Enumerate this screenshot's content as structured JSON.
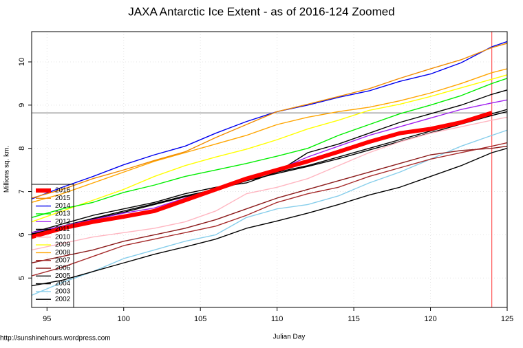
{
  "chart_data": {
    "type": "line",
    "title": "JAXA Antarctic Ice Extent - as of 2016-124 Zoomed",
    "x_label": "Julian Day",
    "y_label": "Millions sq. km.",
    "source": "http://sunshinehours.wordpress.com",
    "xlim": [
      94,
      125
    ],
    "ylim": [
      4.32,
      10.7
    ],
    "xticks": [
      95,
      100,
      105,
      110,
      115,
      120,
      125
    ],
    "yticks": [
      5,
      6,
      7,
      8,
      9,
      10
    ],
    "grid": true,
    "hline": 8.82,
    "vline": 124,
    "legend": "top-left",
    "x": [
      94,
      96,
      98,
      100,
      102,
      104,
      106,
      108,
      110,
      112,
      114,
      116,
      118,
      120,
      122,
      124,
      125
    ],
    "series": [
      {
        "name": "2016",
        "color": "#ff0000",
        "values": [
          5.95,
          6.15,
          6.3,
          6.42,
          6.55,
          6.8,
          7.05,
          7.3,
          7.5,
          7.7,
          7.92,
          8.15,
          8.35,
          8.45,
          8.6,
          8.82,
          null
        ]
      },
      {
        "name": "2015",
        "color": "#f08a00",
        "values": [
          6.85,
          7.05,
          7.3,
          7.5,
          7.72,
          7.92,
          8.25,
          8.55,
          8.85,
          9.02,
          9.2,
          9.38,
          9.62,
          9.84,
          10.05,
          10.33,
          10.43
        ]
      },
      {
        "name": "2014",
        "color": "#0000ee",
        "values": [
          6.83,
          7.1,
          7.35,
          7.62,
          7.85,
          8.05,
          8.35,
          8.62,
          8.85,
          9.0,
          9.18,
          9.33,
          9.55,
          9.72,
          9.98,
          10.35,
          10.47
        ]
      },
      {
        "name": "2013",
        "color": "#00ee00",
        "values": [
          6.4,
          6.6,
          6.75,
          6.98,
          7.15,
          7.35,
          7.5,
          7.65,
          7.82,
          8.0,
          8.3,
          8.55,
          8.8,
          9.0,
          9.22,
          9.5,
          9.62
        ]
      },
      {
        "name": "2012",
        "color": "#a020f0",
        "values": [
          6.05,
          6.2,
          6.35,
          6.5,
          6.62,
          6.85,
          7.05,
          7.3,
          7.5,
          7.8,
          8.05,
          8.3,
          8.5,
          8.7,
          8.9,
          9.05,
          9.12
        ]
      },
      {
        "name": "2011",
        "color": "#000000",
        "values": [
          6.05,
          6.25,
          6.45,
          6.6,
          6.75,
          6.95,
          7.1,
          7.2,
          7.45,
          7.9,
          8.1,
          8.35,
          8.6,
          8.8,
          9.0,
          9.25,
          9.35
        ]
      },
      {
        "name": "2010",
        "color": "#ffb6c1",
        "values": [
          5.65,
          5.8,
          5.95,
          6.05,
          6.15,
          6.3,
          6.55,
          6.95,
          7.1,
          7.3,
          7.6,
          7.9,
          8.15,
          8.35,
          8.5,
          8.65,
          8.72
        ]
      },
      {
        "name": "2009",
        "color": "#ffff00",
        "values": [
          6.3,
          6.55,
          6.8,
          7.05,
          7.35,
          7.6,
          7.8,
          7.98,
          8.2,
          8.45,
          8.65,
          8.88,
          9.02,
          9.2,
          9.4,
          9.6,
          9.7
        ]
      },
      {
        "name": "2008",
        "color": "#ffa500",
        "values": [
          6.75,
          6.95,
          7.2,
          7.45,
          7.7,
          7.9,
          8.1,
          8.3,
          8.55,
          8.72,
          8.85,
          8.95,
          9.1,
          9.28,
          9.5,
          9.75,
          9.84
        ]
      },
      {
        "name": "2007",
        "color": "#a52a2a",
        "values": [
          5.05,
          5.25,
          5.5,
          5.75,
          5.9,
          6.05,
          6.2,
          6.45,
          6.75,
          6.95,
          7.1,
          7.35,
          7.55,
          7.75,
          7.9,
          8.05,
          8.13
        ]
      },
      {
        "name": "2006",
        "color": "#8b1a1a",
        "values": [
          5.35,
          5.5,
          5.65,
          5.85,
          6.0,
          6.15,
          6.35,
          6.6,
          6.85,
          7.05,
          7.25,
          7.45,
          7.65,
          7.85,
          7.95,
          8.0,
          8.05
        ]
      },
      {
        "name": "2005",
        "color": "#000000",
        "values": [
          6.0,
          6.2,
          6.38,
          6.55,
          6.72,
          6.9,
          7.05,
          7.3,
          7.45,
          7.6,
          7.8,
          8.0,
          8.2,
          8.4,
          8.6,
          8.8,
          8.9
        ]
      },
      {
        "name": "2004",
        "color": "#000000",
        "values": [
          4.82,
          4.95,
          5.15,
          5.35,
          5.55,
          5.72,
          5.9,
          6.15,
          6.32,
          6.5,
          6.7,
          6.92,
          7.1,
          7.35,
          7.6,
          7.9,
          8.0
        ]
      },
      {
        "name": "2003",
        "color": "#87ceeb",
        "values": [
          4.6,
          4.9,
          5.15,
          5.45,
          5.65,
          5.85,
          6.0,
          6.4,
          6.6,
          6.7,
          6.9,
          7.2,
          7.45,
          7.75,
          8.05,
          8.3,
          8.42
        ]
      },
      {
        "name": "2002",
        "color": "#000000",
        "values": [
          6.02,
          6.18,
          6.36,
          6.52,
          6.7,
          6.88,
          7.02,
          7.25,
          7.42,
          7.58,
          7.76,
          7.96,
          8.16,
          8.36,
          8.56,
          8.76,
          8.85
        ]
      }
    ]
  }
}
